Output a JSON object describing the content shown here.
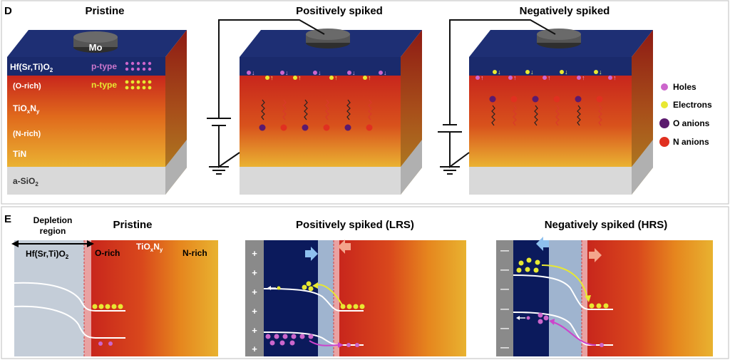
{
  "panel_d": {
    "letter": "D",
    "titles": {
      "pristine": "Pristine",
      "positive": "Positively spiked",
      "negative": "Negatively spiked"
    },
    "electrode": "Mo",
    "layers": {
      "hso_base": "Hf(Sr,Ti)O",
      "hso_sub": "2",
      "o_rich": "(O-rich)",
      "tioxny_base": "TiO",
      "tioxny_sub_x": "x",
      "tioxny_mid": "N",
      "tioxny_sub_y": "y",
      "n_rich": "(N-rich)",
      "tin": "TiN",
      "sio2_base": "a-SiO",
      "sio2_sub": "2"
    },
    "carrier_types": {
      "p": "p-type",
      "n": "n-type"
    },
    "legend": [
      {
        "label": "Holes",
        "color": "#cc66cc"
      },
      {
        "label": "Electrons",
        "color": "#e8e832"
      },
      {
        "label": "O anions",
        "color": "#5b1a6e"
      },
      {
        "label": "N anions",
        "color": "#e03020"
      }
    ]
  },
  "panel_e": {
    "letter": "E",
    "titles": {
      "pristine": "Pristine",
      "positive": "Positively spiked (LRS)",
      "negative": "Negatively spiked (HRS)"
    },
    "depletion": {
      "line1": "Depletion",
      "line2": "region"
    },
    "labels": {
      "hso_base": "Hf(Sr,Ti)O",
      "hso_sub": "2",
      "o_rich": "O-rich",
      "tioxny_base": "TiO",
      "tioxny_sub_x": "x",
      "tioxny_mid": "N",
      "tioxny_sub_y": "y",
      "n_rich": "N-rich"
    },
    "plus_sign": "+",
    "minus_sign": "—"
  },
  "colors": {
    "navy": "#1a2a6c",
    "navy_dark": "#0b1a5c",
    "red": "#c8261c",
    "orange": "#e8901e",
    "yellow": "#e8b830",
    "silver": "#d4d4d4",
    "gray_strip": "#8a8a8a",
    "light_blue": "#9fb4cf",
    "electron": "#e8e832",
    "hole": "#cc66cc"
  }
}
